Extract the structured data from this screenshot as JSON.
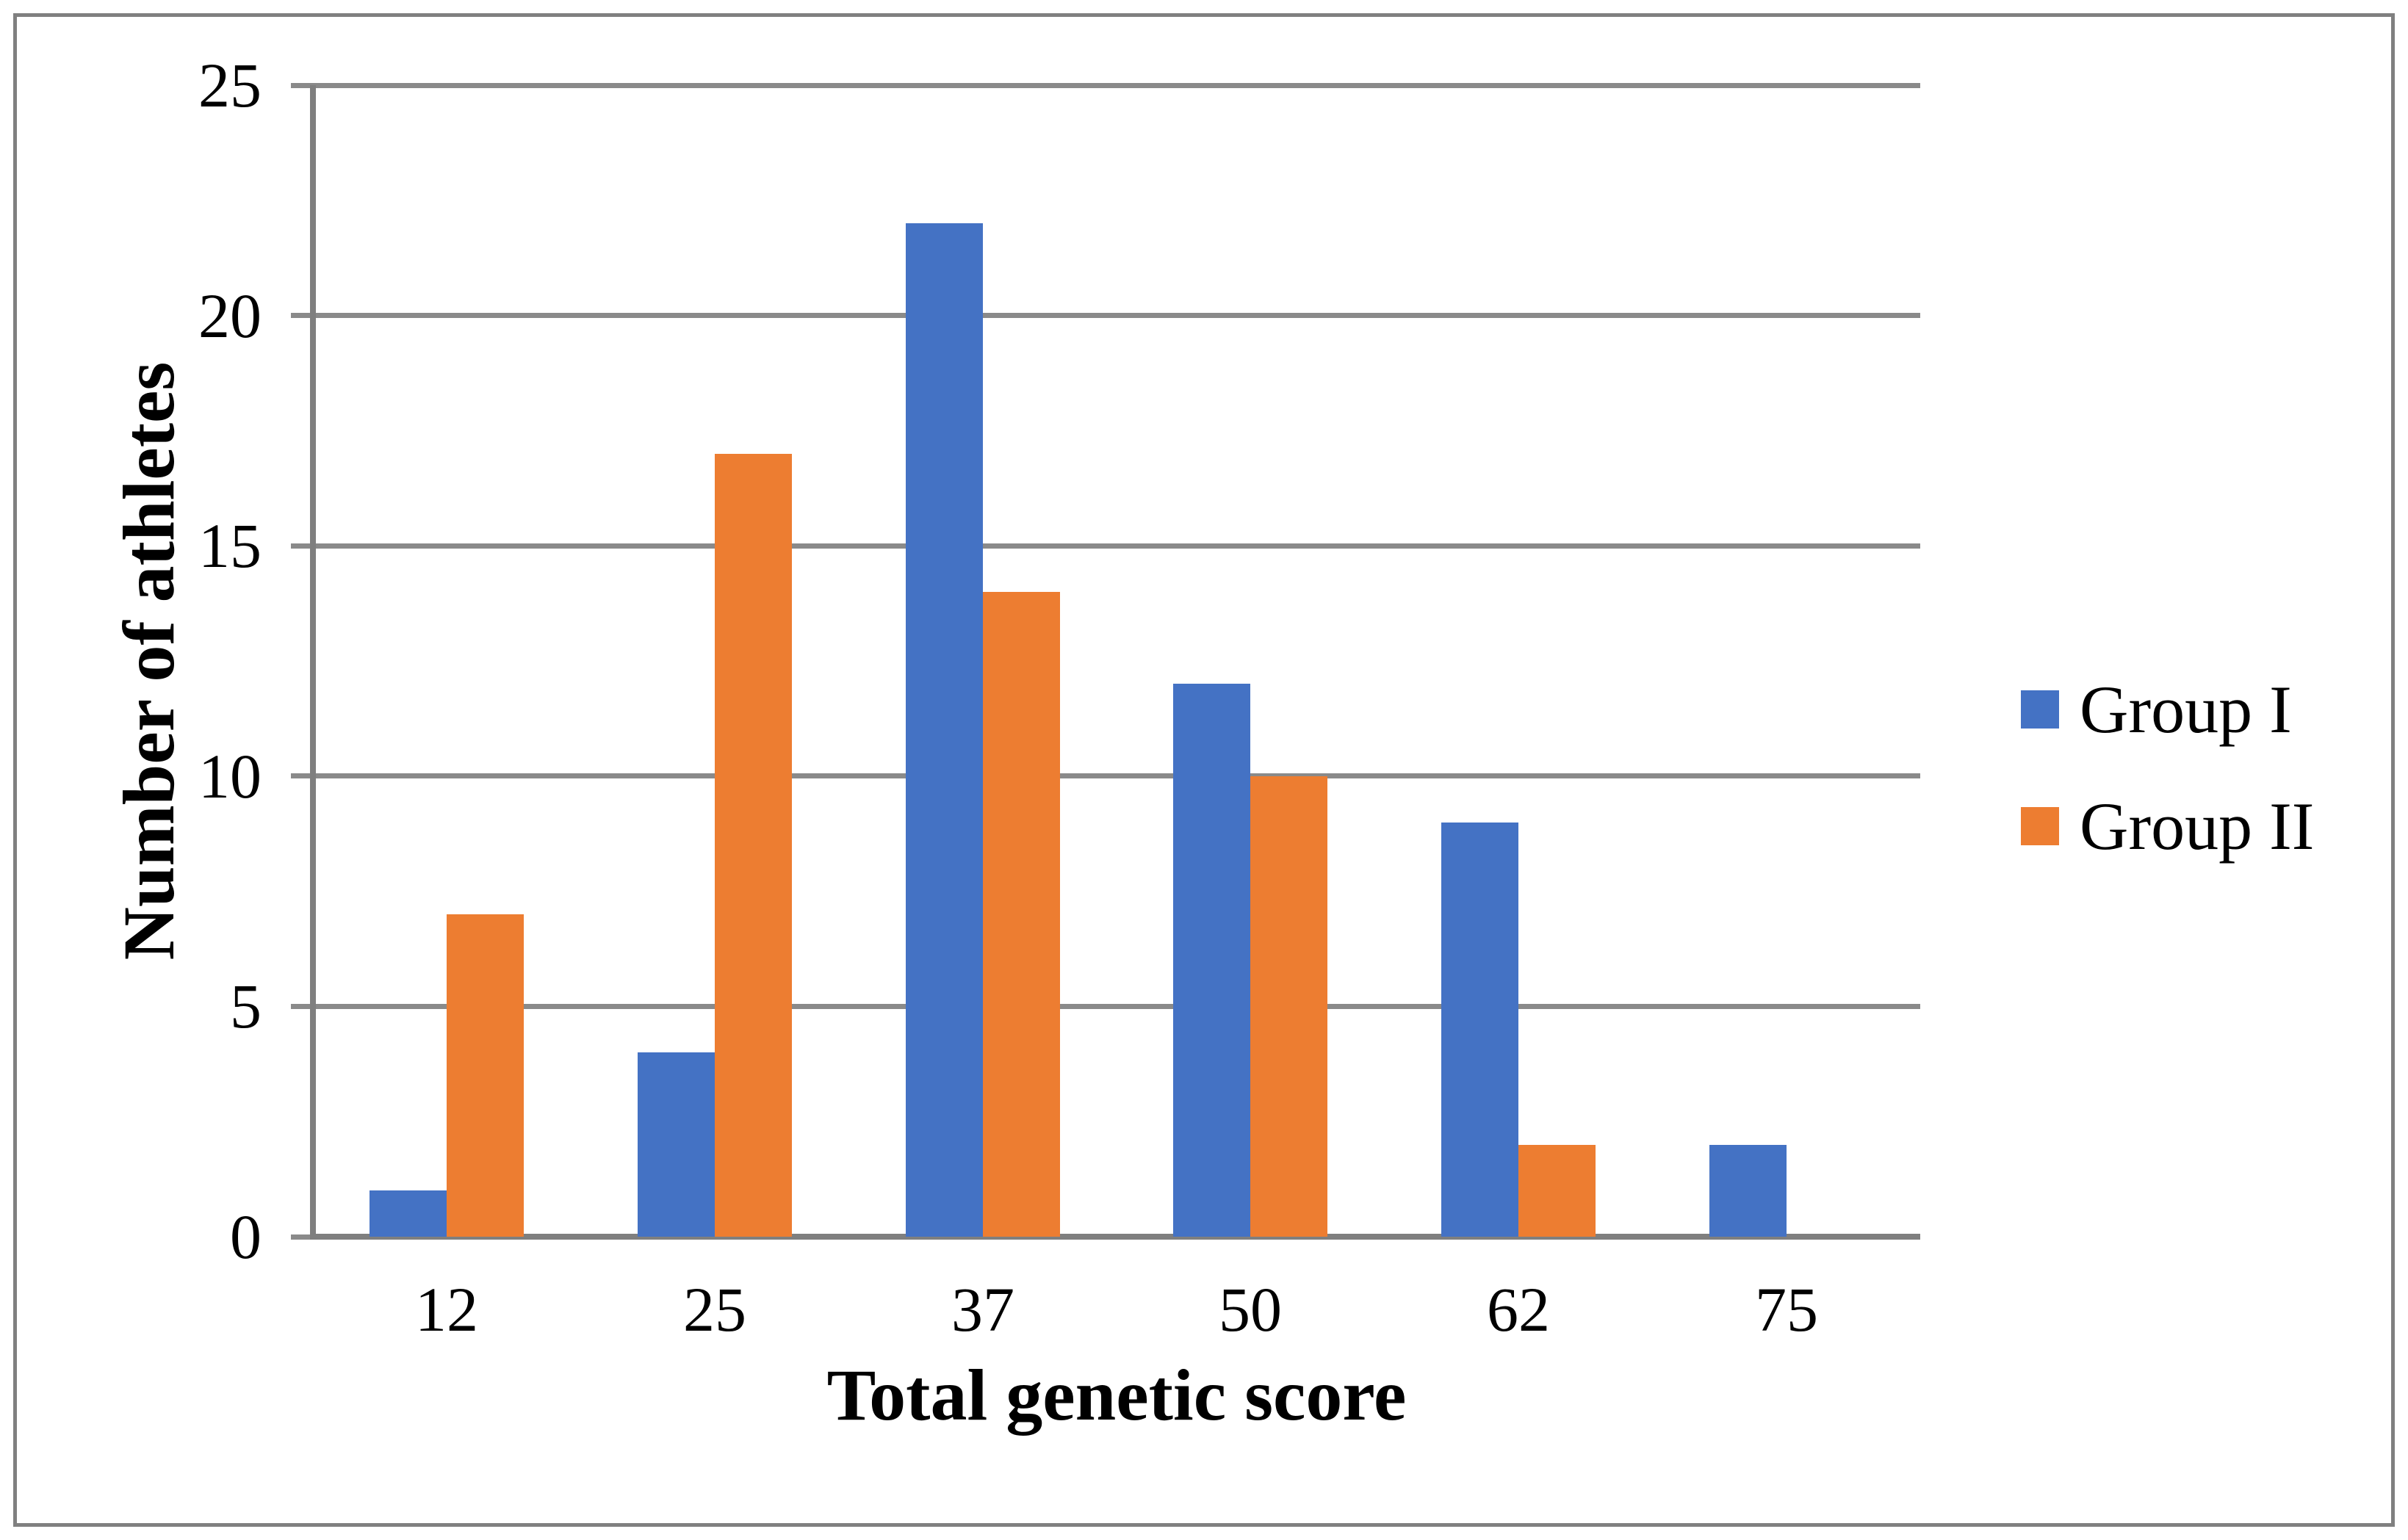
{
  "chart_data": {
    "type": "bar",
    "title": "",
    "categories": [
      "12",
      "25",
      "37",
      "50",
      "62",
      "75"
    ],
    "series": [
      {
        "name": "Group I",
        "color": "#4472C4",
        "values": [
          1,
          4,
          22,
          12,
          9,
          2
        ]
      },
      {
        "name": "Group II",
        "color": "#ED7D31",
        "values": [
          7,
          17,
          14,
          10,
          2,
          0
        ]
      }
    ],
    "xlabel": "Total genetic score",
    "ylabel": "Number of athletes",
    "ylim": [
      0,
      25
    ],
    "yticks": [
      0,
      5,
      10,
      15,
      20,
      25
    ],
    "grid": true,
    "legend_position": "right",
    "colors": {
      "grid": "#8A8A8A",
      "axis": "#7F7F7F",
      "frame": "#808080",
      "text": "#000000"
    }
  }
}
